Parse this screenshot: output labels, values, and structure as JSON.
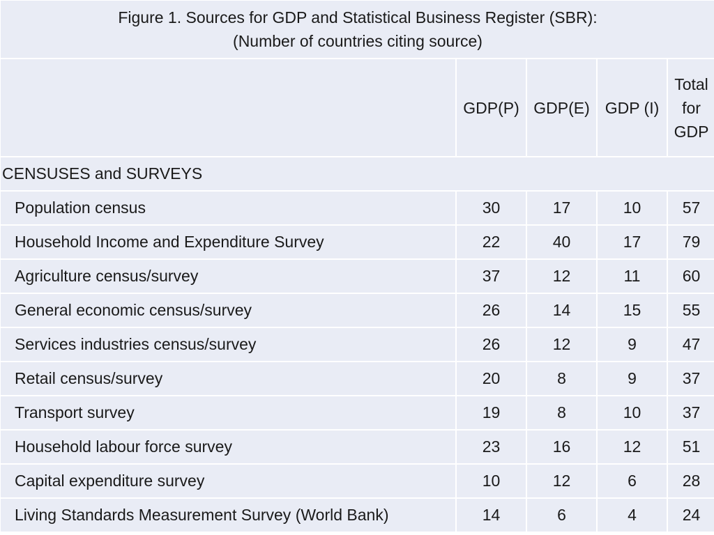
{
  "title": {
    "line1": "Figure 1. Sources for GDP and Statistical Business Register (SBR):",
    "line2": "(Number of countries citing source)"
  },
  "columns": {
    "gdp_p": "GDP(P)",
    "gdp_e": "GDP(E)",
    "gdp_i": "GDP (I)",
    "total_line1": "Total",
    "total_line2": "for",
    "total_line3": "GDP"
  },
  "section": {
    "label": "CENSUSES and SURVEYS"
  },
  "rows": [
    {
      "label": "Population census",
      "gdp_p": "30",
      "gdp_e": "17",
      "gdp_i": "10",
      "total": "57"
    },
    {
      "label": "Household Income and Expenditure Survey",
      "gdp_p": "22",
      "gdp_e": "40",
      "gdp_i": "17",
      "total": "79"
    },
    {
      "label": "Agriculture census/survey",
      "gdp_p": "37",
      "gdp_e": "12",
      "gdp_i": "11",
      "total": "60"
    },
    {
      "label": "General economic census/survey",
      "gdp_p": "26",
      "gdp_e": "14",
      "gdp_i": "15",
      "total": "55"
    },
    {
      "label": "Services industries census/survey",
      "gdp_p": "26",
      "gdp_e": "12",
      "gdp_i": "9",
      "total": "47"
    },
    {
      "label": "Retail census/survey",
      "gdp_p": "20",
      "gdp_e": "8",
      "gdp_i": "9",
      "total": "37"
    },
    {
      "label": "Transport survey",
      "gdp_p": "19",
      "gdp_e": "8",
      "gdp_i": "10",
      "total": "37"
    },
    {
      "label": "Household labour force survey",
      "gdp_p": "23",
      "gdp_e": "16",
      "gdp_i": "12",
      "total": "51"
    },
    {
      "label": "Capital expenditure survey",
      "gdp_p": "10",
      "gdp_e": "12",
      "gdp_i": "6",
      "total": "28"
    },
    {
      "label": "Living Standards Measurement Survey (World Bank)",
      "gdp_p": "14",
      "gdp_e": "6",
      "gdp_i": "4",
      "total": "24"
    }
  ]
}
